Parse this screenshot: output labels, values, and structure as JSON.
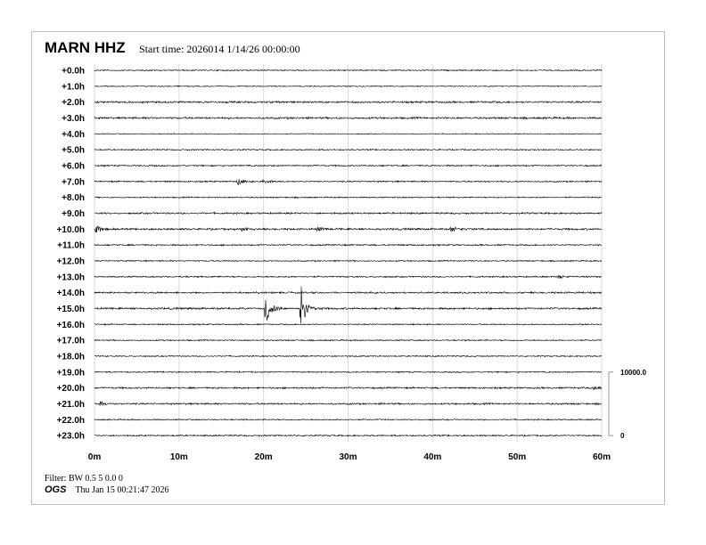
{
  "header": {
    "station": "MARN HHZ",
    "start_time": "Start time: 2026014   1/14/26 00:00:00"
  },
  "footer": {
    "filter": "Filter: BW 0.5 5 0.0 0",
    "org": "OGS",
    "generated": "Thu Jan 15 00:21:47 2026"
  },
  "chart_data": {
    "type": "line",
    "title": "MARN HHZ",
    "row_labels": [
      "+0.0h",
      "+1.0h",
      "+2.0h",
      "+3.0h",
      "+4.0h",
      "+5.0h",
      "+6.0h",
      "+7.0h",
      "+8.0h",
      "+9.0h",
      "+10.0h",
      "+11.0h",
      "+12.0h",
      "+13.0h",
      "+14.0h",
      "+15.0h",
      "+16.0h",
      "+17.0h",
      "+18.0h",
      "+19.0h",
      "+20.0h",
      "+21.0h",
      "+22.0h",
      "+23.0h"
    ],
    "x_ticks": [
      "0m",
      "10m",
      "20m",
      "30m",
      "40m",
      "50m",
      "60m"
    ],
    "xlim": [
      0,
      60
    ],
    "grid": true,
    "scale": {
      "top_label": "10000.0",
      "bottom_label": "0"
    },
    "row_noise": [
      0.6,
      0.5,
      0.9,
      0.9,
      0.4,
      0.6,
      0.7,
      0.7,
      0.6,
      0.8,
      0.9,
      0.7,
      0.6,
      0.7,
      0.8,
      0.9,
      0.6,
      0.6,
      0.6,
      0.6,
      0.8,
      0.8,
      0.6,
      0.7
    ],
    "events": [
      {
        "row": 7,
        "minute": 17.0,
        "amplitude": 5
      },
      {
        "row": 7,
        "minute": 20.0,
        "amplitude": 3
      },
      {
        "row": 10,
        "minute": 0.3,
        "amplitude": 6
      },
      {
        "row": 10,
        "minute": 17.5,
        "amplitude": 2.5
      },
      {
        "row": 10,
        "minute": 26.5,
        "amplitude": 2.5
      },
      {
        "row": 10,
        "minute": 42.3,
        "amplitude": 4
      },
      {
        "row": 13,
        "minute": 55.0,
        "amplitude": 2
      },
      {
        "row": 15,
        "minute": 20.3,
        "amplitude": 22
      },
      {
        "row": 15,
        "minute": 24.5,
        "amplitude": 30
      },
      {
        "row": 20,
        "minute": 59.0,
        "amplitude": 2.5
      },
      {
        "row": 21,
        "minute": 0.8,
        "amplitude": 2.5
      }
    ],
    "color": "#000000",
    "grid_color": "#d9d9d9"
  }
}
